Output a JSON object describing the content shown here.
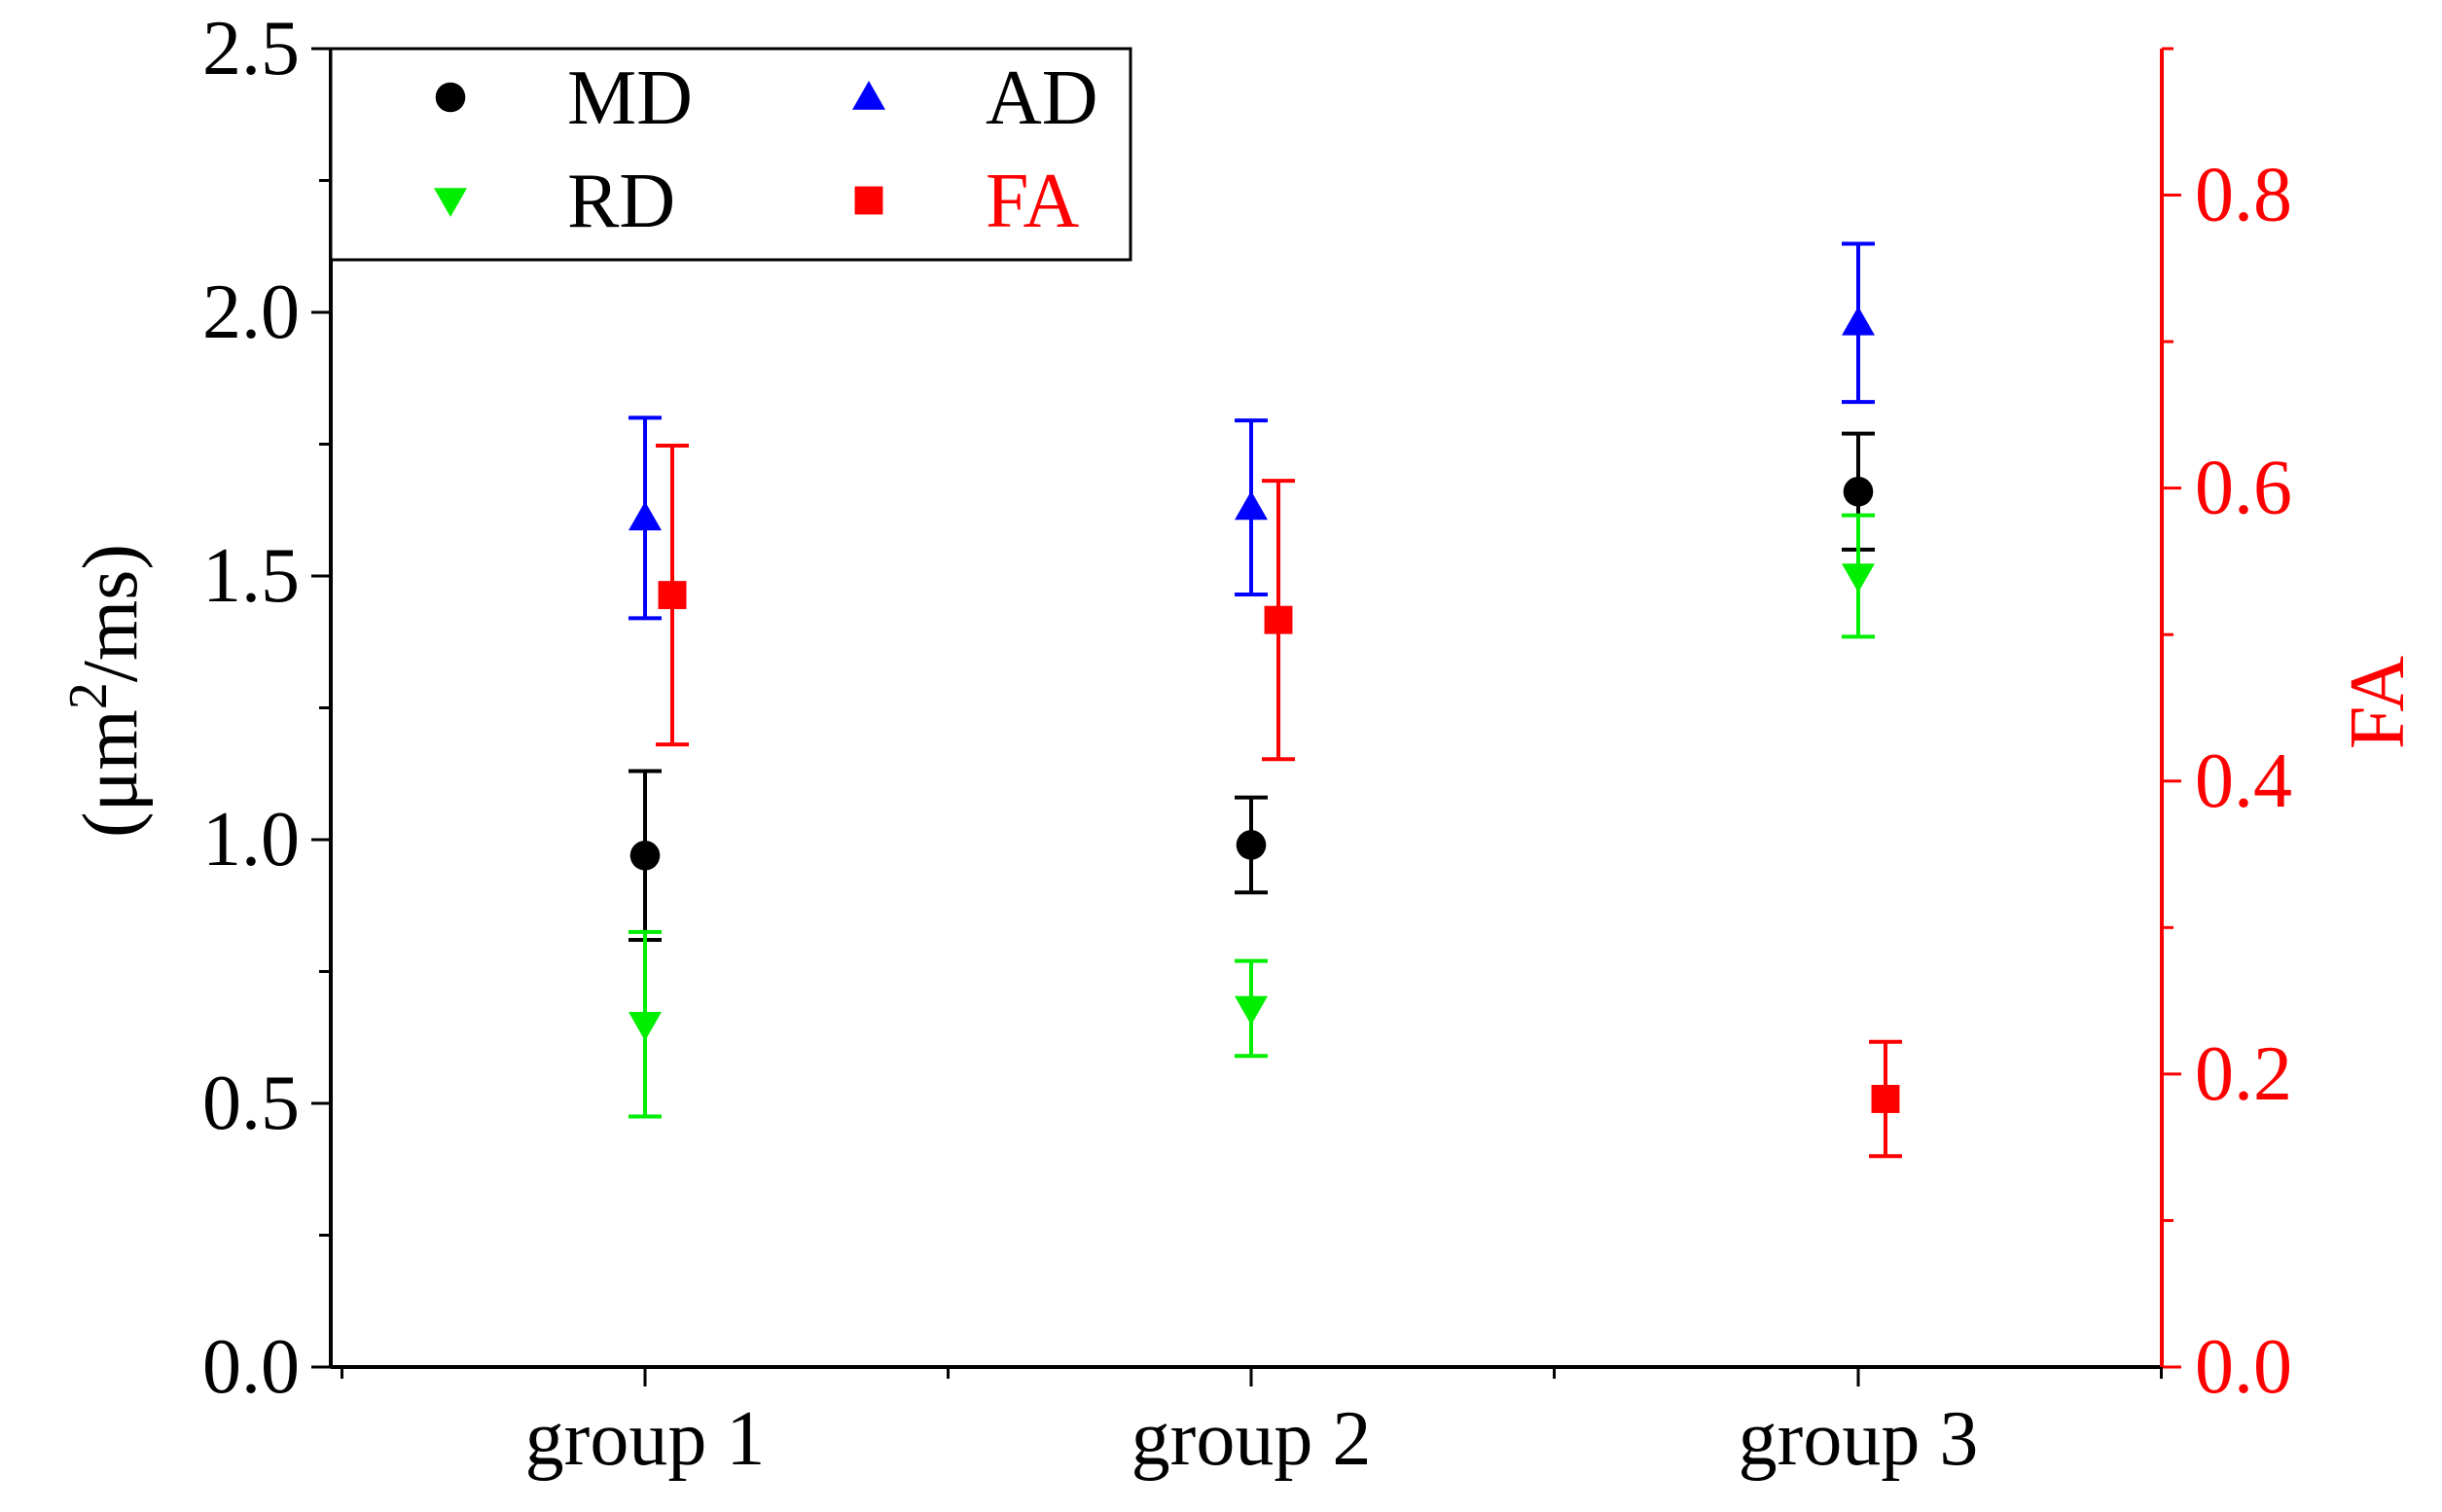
{
  "chart_data": {
    "type": "scatter",
    "categories": [
      "group 1",
      "group 2",
      "group 3"
    ],
    "left_axis": {
      "title": "(μm²/ms)",
      "title_main": "(μm",
      "title_sup": "2",
      "title_tail": "/ms)",
      "ylim": [
        0,
        2.5
      ],
      "major_ticks": [
        0.0,
        0.5,
        1.0,
        1.5,
        2.0,
        2.5
      ],
      "tick_labels": [
        "0.0",
        "0.5",
        "1.0",
        "1.5",
        "2.0",
        "2.5"
      ],
      "color": "#000000"
    },
    "right_axis": {
      "title": "FA",
      "ylim": [
        0,
        0.9
      ],
      "major_ticks": [
        0.0,
        0.2,
        0.4,
        0.6,
        0.8
      ],
      "tick_labels": [
        "0.0",
        "0.2",
        "0.4",
        "0.6",
        "0.8"
      ],
      "color": "#ff0000"
    },
    "series": [
      {
        "name": "MD",
        "axis": "left",
        "marker": "circle",
        "color": "#000000",
        "values": [
          0.97,
          0.99,
          1.66
        ],
        "errors": [
          0.16,
          0.09,
          0.11
        ]
      },
      {
        "name": "AD",
        "axis": "left",
        "marker": "triangle-up",
        "color": "#0000ff",
        "values": [
          1.61,
          1.63,
          1.98
        ],
        "errors": [
          0.19,
          0.165,
          0.15
        ]
      },
      {
        "name": "RD",
        "axis": "left",
        "marker": "triangle-down",
        "color": "#00ee00",
        "values": [
          0.65,
          0.68,
          1.5
        ],
        "errors": [
          0.175,
          0.09,
          0.115
        ]
      },
      {
        "name": "FA",
        "axis": "right",
        "marker": "square",
        "color": "#ff0000",
        "values": [
          0.527,
          0.51,
          0.183
        ],
        "errors": [
          0.102,
          0.095,
          0.039
        ]
      }
    ],
    "legend": {
      "placement": "top-left",
      "rows": [
        [
          "MD",
          "AD"
        ],
        [
          "RD",
          "FA"
        ]
      ]
    }
  }
}
